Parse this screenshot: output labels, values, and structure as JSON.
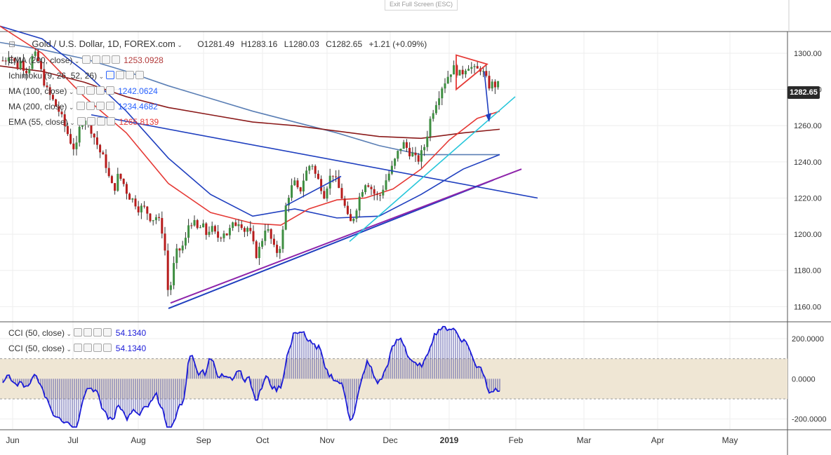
{
  "fullscreen": {
    "exit_label": "Exit Full Screen (ESC)"
  },
  "header": {
    "symbol": "Gold / U.S. Dollar, 1D, FOREX.com",
    "open": "O1281.49",
    "high": "H1283.16",
    "low": "L1280.03",
    "close": "C1282.65",
    "change": "+1.21 (+0.09%)"
  },
  "indicators": [
    {
      "label": "EMA (200, close)",
      "value": "1253.0928",
      "color": "#b23a3a"
    },
    {
      "label": "Ichimoku (9, 26, 52, 26)",
      "value": "",
      "color": "#2962ff"
    },
    {
      "label": "MA (100, close)",
      "value": "1242.0624",
      "color": "#2962ff"
    },
    {
      "label": "MA (200, close)",
      "value": "1234.4682",
      "color": "#2962ff"
    },
    {
      "label": "EMA (55, close)",
      "value": "1265.8139",
      "color": "#e53935"
    }
  ],
  "cci_panels": [
    {
      "label": "CCI (50, close)",
      "value": "54.1340"
    },
    {
      "label": "CCI (50, close)",
      "value": "54.1340"
    }
  ],
  "last_price": "1282.65",
  "colors": {
    "up": "#26a69a",
    "down": "#c62828",
    "candle_body": "#3b7a3b",
    "cci_line": "#1c1cd8",
    "cci_band": "#efe6d4"
  },
  "chart_data": {
    "type": "candlestick",
    "price_axis": {
      "ticks": [
        1300,
        1280,
        1260,
        1240,
        1220,
        1200,
        1180,
        1160
      ],
      "tick_labels": [
        "1300.00",
        "1280.00",
        "1260.00",
        "1240.00",
        "1220.00",
        "1200.00",
        "1180.00",
        "1160.00"
      ],
      "range": [
        1152,
        1312
      ]
    },
    "cci_axis": {
      "ticks": [
        200,
        0,
        -200
      ],
      "tick_labels": [
        "200.0000",
        "0.0000",
        "-200.0000"
      ],
      "range": [
        -250,
        280
      ],
      "band": [
        -100,
        100
      ]
    },
    "x_labels": [
      "Jun",
      "Jul",
      "Aug",
      "Sep",
      "Oct",
      "Nov",
      "Dec",
      "2019",
      "Feb",
      "Mar",
      "Apr",
      "May"
    ],
    "price_path": [
      [
        0,
        1298
      ],
      [
        6,
        1295
      ],
      [
        12,
        1300
      ],
      [
        18,
        1297
      ],
      [
        24,
        1292
      ],
      [
        30,
        1296
      ],
      [
        36,
        1290
      ],
      [
        42,
        1293
      ],
      [
        48,
        1300
      ],
      [
        54,
        1296
      ],
      [
        60,
        1288
      ],
      [
        66,
        1280
      ],
      [
        72,
        1276
      ],
      [
        78,
        1272
      ],
      [
        84,
        1268
      ],
      [
        90,
        1262
      ],
      [
        96,
        1256
      ],
      [
        102,
        1250
      ],
      [
        108,
        1246
      ],
      [
        114,
        1260
      ],
      [
        120,
        1265
      ],
      [
        126,
        1262
      ],
      [
        132,
        1256
      ],
      [
        138,
        1250
      ],
      [
        144,
        1244
      ],
      [
        150,
        1240
      ],
      [
        156,
        1230
      ],
      [
        162,
        1224
      ],
      [
        168,
        1232
      ],
      [
        174,
        1230
      ],
      [
        180,
        1224
      ],
      [
        186,
        1220
      ],
      [
        192,
        1218
      ],
      [
        198,
        1214
      ],
      [
        204,
        1215
      ],
      [
        210,
        1212
      ],
      [
        216,
        1208
      ],
      [
        222,
        1210
      ],
      [
        228,
        1206
      ],
      [
        234,
        1198
      ],
      [
        238,
        1170
      ],
      [
        242,
        1168
      ],
      [
        246,
        1180
      ],
      [
        252,
        1190
      ],
      [
        258,
        1192
      ],
      [
        264,
        1196
      ],
      [
        270,
        1208
      ],
      [
        276,
        1206
      ],
      [
        282,
        1202
      ],
      [
        288,
        1205
      ],
      [
        294,
        1200
      ],
      [
        300,
        1204
      ],
      [
        306,
        1200
      ],
      [
        312,
        1198
      ],
      [
        318,
        1202
      ],
      [
        324,
        1200
      ],
      [
        330,
        1204
      ],
      [
        336,
        1206
      ],
      [
        342,
        1208
      ],
      [
        348,
        1202
      ],
      [
        354,
        1204
      ],
      [
        360,
        1195
      ],
      [
        366,
        1188
      ],
      [
        372,
        1195
      ],
      [
        378,
        1204
      ],
      [
        384,
        1200
      ],
      [
        390,
        1192
      ],
      [
        396,
        1190
      ],
      [
        402,
        1198
      ],
      [
        408,
        1218
      ],
      [
        414,
        1225
      ],
      [
        420,
        1228
      ],
      [
        426,
        1222
      ],
      [
        432,
        1230
      ],
      [
        438,
        1236
      ],
      [
        444,
        1240
      ],
      [
        450,
        1232
      ],
      [
        456,
        1228
      ],
      [
        462,
        1222
      ],
      [
        468,
        1230
      ],
      [
        474,
        1234
      ],
      [
        480,
        1228
      ],
      [
        486,
        1222
      ],
      [
        492,
        1214
      ],
      [
        498,
        1205
      ],
      [
        504,
        1210
      ],
      [
        510,
        1218
      ],
      [
        516,
        1225
      ],
      [
        522,
        1230
      ],
      [
        528,
        1226
      ],
      [
        534,
        1222
      ],
      [
        540,
        1220
      ],
      [
        546,
        1226
      ],
      [
        552,
        1232
      ],
      [
        558,
        1236
      ],
      [
        564,
        1242
      ],
      [
        570,
        1248
      ],
      [
        576,
        1250
      ],
      [
        582,
        1246
      ],
      [
        588,
        1244
      ],
      [
        594,
        1240
      ],
      [
        600,
        1244
      ],
      [
        606,
        1250
      ],
      [
        612,
        1262
      ],
      [
        618,
        1270
      ],
      [
        624,
        1276
      ],
      [
        630,
        1282
      ],
      [
        636,
        1286
      ],
      [
        642,
        1290
      ],
      [
        648,
        1292
      ],
      [
        654,
        1288
      ],
      [
        660,
        1290
      ],
      [
        666,
        1294
      ],
      [
        672,
        1292
      ],
      [
        678,
        1290
      ],
      [
        684,
        1292
      ],
      [
        690,
        1288
      ],
      [
        696,
        1282
      ],
      [
        702,
        1283
      ],
      [
        708,
        1282
      ],
      [
        712,
        1283
      ]
    ]
  }
}
